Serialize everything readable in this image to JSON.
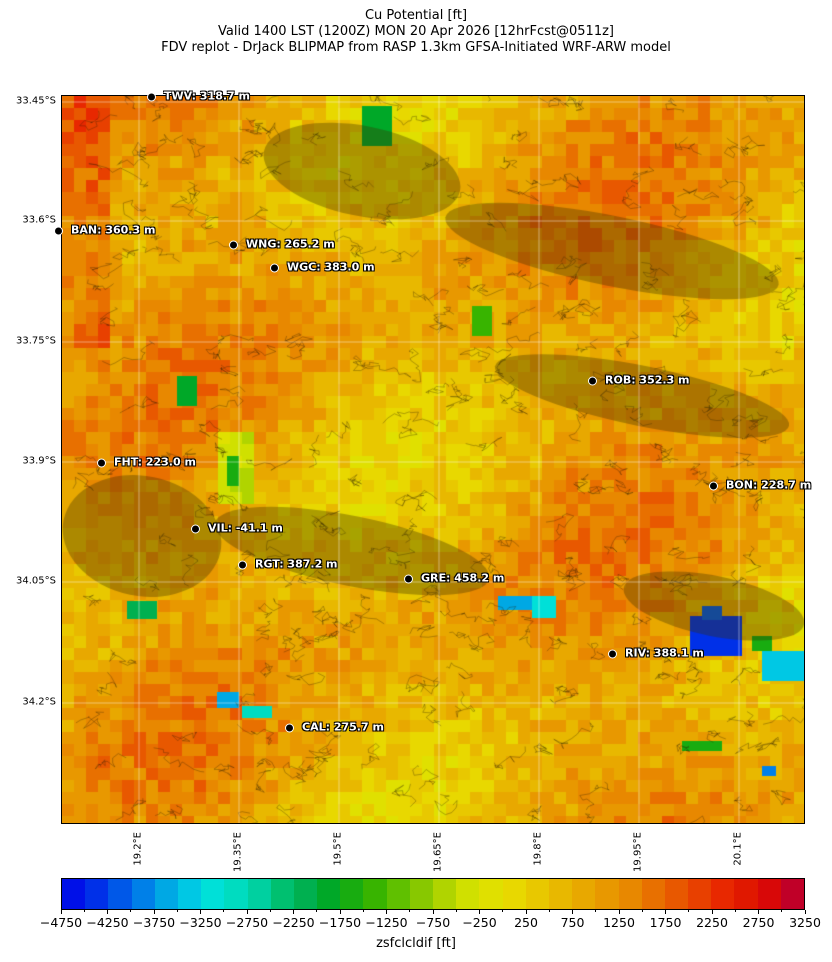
{
  "title": {
    "line1": "Cu Potential [ft]",
    "line2": "Valid 1400 LST (1200Z) MON 20 Apr 2026 [12hrFcst@0511z]",
    "line3": "FDV replot - DrJack BLIPMAP from RASP 1.3km GFSA-Initiated WRF-ARW model"
  },
  "map": {
    "lat_ticks": [
      "33.45°S",
      "33.6°S",
      "33.75°S",
      "33.9°S",
      "34.05°S",
      "34.2°S"
    ],
    "lon_ticks": [
      "19.2°E",
      "19.35°E",
      "19.5°E",
      "19.65°E",
      "19.8°E",
      "19.95°E",
      "20.1°E"
    ],
    "stations": [
      {
        "label": "TWV: 318.7 m"
      },
      {
        "label": "BAN: 360.3 m"
      },
      {
        "label": "WNG: 265.2 m"
      },
      {
        "label": "WGC: 383.0 m"
      },
      {
        "label": "ROB: 352.3 m"
      },
      {
        "label": "FHT: 223.0 m"
      },
      {
        "label": "BON: 228.7 m"
      },
      {
        "label": "VIL: -41.1 m"
      },
      {
        "label": "RGT: 387.2 m"
      },
      {
        "label": "GRE: 458.2 m"
      },
      {
        "label": "RIV: 388.1 m"
      },
      {
        "label": "CAL: 275.7 m"
      }
    ]
  },
  "colorbar": {
    "label": "zsfclcldif [ft]",
    "min": -4750,
    "max": 3250,
    "step": 250,
    "tick_labels": [
      "−4750",
      "−4250",
      "−3750",
      "−3250",
      "−2750",
      "−2250",
      "−1750",
      "−1250",
      "−750",
      "−250",
      "250",
      "750",
      "1250",
      "1750",
      "2250",
      "2750",
      "3250"
    ],
    "colors": [
      "#0010e8",
      "#0030e8",
      "#0058e8",
      "#0080e8",
      "#00a8e4",
      "#00c8e4",
      "#00e0d8",
      "#00dcc0",
      "#00d0a0",
      "#00c070",
      "#00b050",
      "#00a828",
      "#18ac10",
      "#38b400",
      "#60c000",
      "#88c800",
      "#b0d400",
      "#d0e000",
      "#e0e000",
      "#e8d800",
      "#e8c800",
      "#e8b800",
      "#e8a800",
      "#e89800",
      "#e88800",
      "#e87000",
      "#e85800",
      "#e84000",
      "#e82800",
      "#e01800",
      "#d80808",
      "#c00028"
    ]
  }
}
